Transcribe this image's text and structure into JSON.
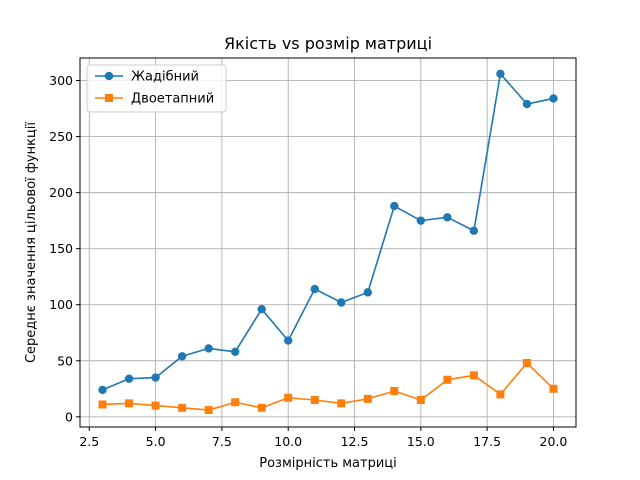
{
  "chart_data": {
    "type": "line",
    "title": "Якість vs розмір матриці",
    "xlabel": "Розмірність матриці",
    "ylabel": "Середнє значення цільової функції",
    "xlim": [
      2.15,
      20.85
    ],
    "ylim": [
      -9.1,
      320.1
    ],
    "xticks": [
      2.5,
      5.0,
      7.5,
      10.0,
      12.5,
      15.0,
      17.5,
      20.0
    ],
    "xtick_labels": [
      "2.5",
      "5.0",
      "7.5",
      "10.0",
      "12.5",
      "15.0",
      "17.5",
      "20.0"
    ],
    "yticks": [
      0,
      50,
      100,
      150,
      200,
      250,
      300
    ],
    "ytick_labels": [
      "0",
      "50",
      "100",
      "150",
      "200",
      "250",
      "300"
    ],
    "grid": true,
    "legend_position": "top-left",
    "x": [
      3,
      4,
      5,
      6,
      7,
      8,
      9,
      10,
      11,
      12,
      13,
      14,
      15,
      16,
      17,
      18,
      19,
      20
    ],
    "series": [
      {
        "name": "Жадібний",
        "color": "#1f77b4",
        "marker": "circle",
        "values": [
          24,
          34,
          35,
          54,
          61,
          58,
          96,
          68,
          114,
          102,
          111,
          188,
          175,
          178,
          166,
          306,
          279,
          284
        ]
      },
      {
        "name": "Двоетапний",
        "color": "#ff7f0e",
        "marker": "square",
        "values": [
          11,
          12,
          10,
          8,
          6,
          13,
          8,
          17,
          15,
          12,
          16,
          23,
          15,
          33,
          37,
          20,
          48,
          25
        ]
      }
    ]
  }
}
